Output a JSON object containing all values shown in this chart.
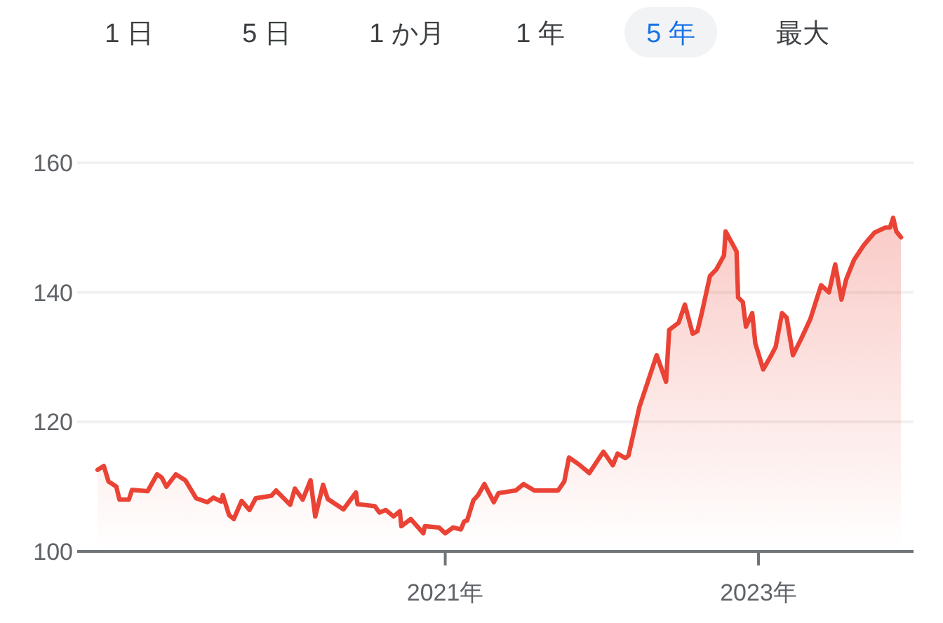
{
  "chart_data": {
    "type": "area",
    "annotations": [
      "1 日",
      "5 日",
      "1 か月",
      "1 年",
      "5 年",
      "最大"
    ],
    "color": "#ea4335",
    "x": [
      2018.78,
      2018.82,
      2018.85,
      2018.9,
      2018.92,
      2018.98,
      2019.0,
      2019.1,
      2019.16,
      2019.19,
      2019.22,
      2019.28,
      2019.34,
      2019.41,
      2019.48,
      2019.52,
      2019.57,
      2019.58,
      2019.62,
      2019.65,
      2019.7,
      2019.75,
      2019.79,
      2019.89,
      2019.92,
      2020.01,
      2020.04,
      2020.09,
      2020.14,
      2020.17,
      2020.22,
      2020.25,
      2020.35,
      2020.43,
      2020.44,
      2020.55,
      2020.58,
      2020.62,
      2020.67,
      2020.71,
      2020.72,
      2020.78,
      2020.86,
      2020.87,
      2020.96,
      2021.0,
      2021.05,
      2021.1,
      2021.12,
      2021.14,
      2021.18,
      2021.21,
      2021.25,
      2021.31,
      2021.34,
      2021.45,
      2021.5,
      2021.57,
      2021.72,
      2021.76,
      2021.79,
      2021.85,
      2021.92,
      2022.01,
      2022.07,
      2022.1,
      2022.15,
      2022.17,
      2022.24,
      2022.35,
      2022.41,
      2022.43,
      2022.49,
      2022.53,
      2022.58,
      2022.61,
      2022.64,
      2022.69,
      2022.73,
      2022.78,
      2022.79,
      2022.84,
      2022.86,
      2022.87,
      2022.9,
      2022.92,
      2022.96,
      2022.98,
      2023.03,
      2023.08,
      2023.11,
      2023.15,
      2023.18,
      2023.22,
      2023.27,
      2023.33,
      2023.4,
      2023.45,
      2023.49,
      2023.53,
      2023.56,
      2023.61,
      2023.67,
      2023.74,
      2023.81,
      2023.84,
      2023.86,
      2023.88,
      2023.91
    ],
    "values": [
      112.6,
      113.2,
      110.8,
      110.0,
      108.0,
      108.0,
      109.5,
      109.3,
      111.9,
      111.4,
      110.0,
      111.9,
      111.0,
      108.2,
      107.6,
      108.3,
      107.7,
      108.7,
      105.6,
      105.0,
      107.8,
      106.4,
      108.2,
      108.6,
      109.4,
      107.2,
      109.7,
      108.0,
      111.0,
      105.4,
      110.3,
      108.1,
      106.5,
      109.1,
      107.3,
      107.0,
      106.0,
      106.4,
      105.4,
      106.2,
      103.9,
      105.0,
      102.8,
      103.9,
      103.7,
      102.8,
      103.7,
      103.4,
      104.6,
      104.8,
      107.9,
      108.7,
      110.4,
      107.6,
      109.0,
      109.4,
      110.4,
      109.4,
      109.4,
      110.8,
      114.5,
      113.5,
      112.1,
      115.4,
      113.3,
      115.1,
      114.4,
      114.8,
      122.3,
      130.3,
      126.2,
      134.2,
      135.3,
      138.1,
      133.6,
      134.0,
      137.0,
      142.5,
      143.5,
      145.7,
      149.4,
      147.2,
      146.3,
      139.2,
      138.5,
      134.7,
      136.8,
      132.1,
      128.1,
      130.2,
      131.6,
      136.8,
      136.1,
      130.3,
      132.7,
      135.8,
      141.1,
      140.0,
      144.3,
      138.9,
      142.0,
      145.0,
      147.2,
      149.2,
      150.0,
      150.0,
      151.5,
      149.4,
      148.5
    ],
    "xlim": [
      2018.65,
      2023.99
    ],
    "ylim": [
      100,
      160
    ],
    "xticks": [
      {
        "value": 2021,
        "label": "2021年"
      },
      {
        "value": 2023,
        "label": "2023年"
      }
    ],
    "yticks": [
      100,
      120,
      140,
      160
    ],
    "grid": "y"
  }
}
